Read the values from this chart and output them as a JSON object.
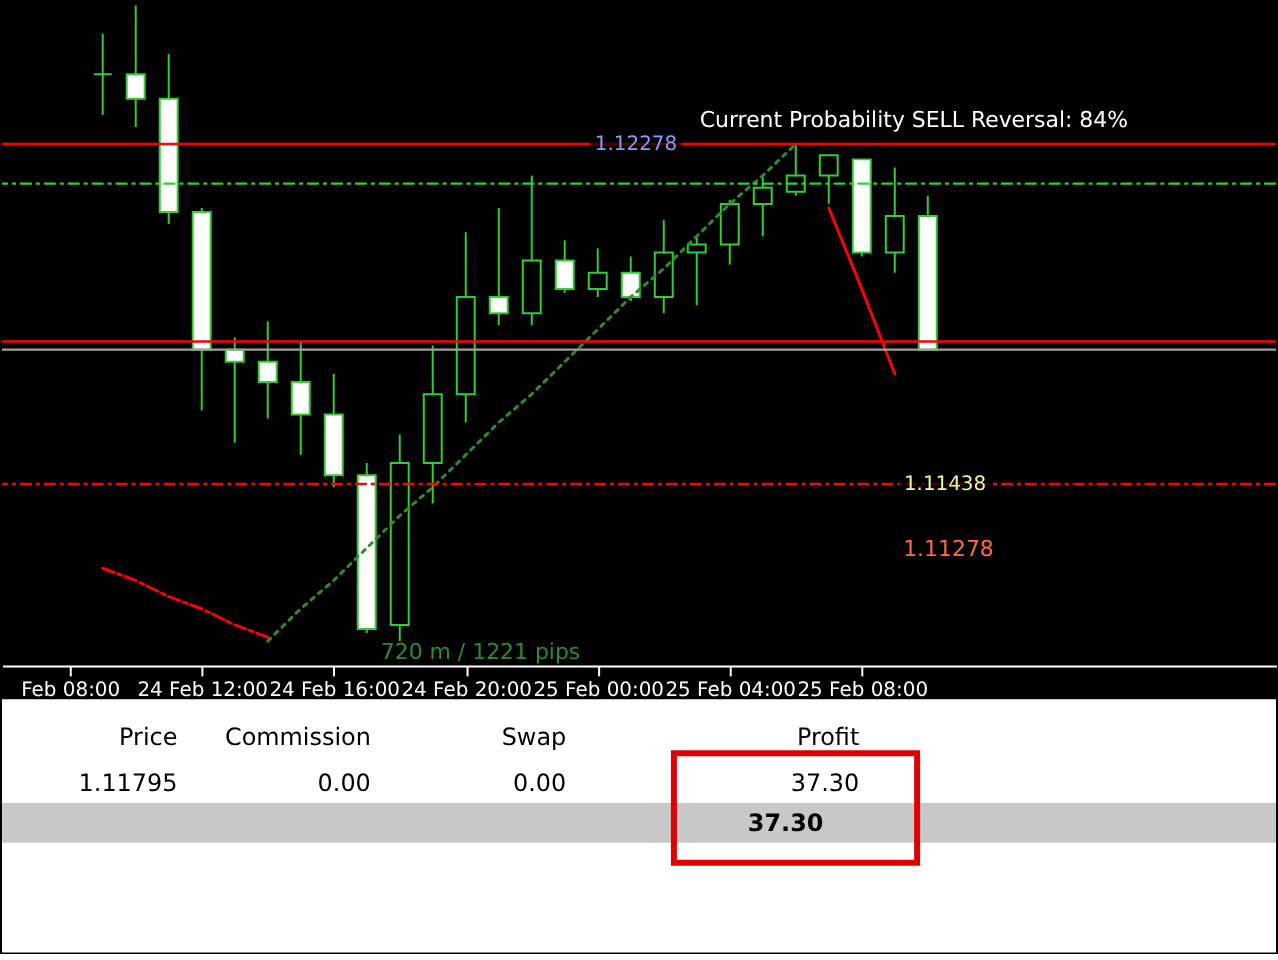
{
  "chart_data": {
    "type": "candlestick",
    "color": "#32cd32",
    "categories": [
      null,
      "Feb 08:00",
      null,
      null,
      null,
      "24 Feb 12:00",
      null,
      null,
      null,
      "24 Feb 16:00",
      null,
      null,
      null,
      "24 Feb 20:00",
      null,
      null,
      null,
      "25 Feb 00:00",
      null,
      null,
      null,
      "25 Feb 04:00",
      null,
      null,
      null,
      "25 Feb 08:00",
      null,
      null
    ],
    "ohlc": [
      null,
      null,
      [
        1.1245,
        1.1255,
        1.1235,
        1.1245
      ],
      [
        1.1245,
        1.1262,
        1.1232,
        1.1239
      ],
      [
        1.1239,
        1.125,
        1.1208,
        1.1211
      ],
      [
        1.1211,
        1.1212,
        1.1162,
        1.1177
      ],
      [
        1.1177,
        1.118,
        1.1154,
        1.1174
      ],
      [
        1.1174,
        1.1184,
        1.116,
        1.1169
      ],
      [
        1.1169,
        1.1179,
        1.1151,
        1.1161
      ],
      [
        1.1161,
        1.1171,
        1.1143,
        1.1146
      ],
      [
        1.1146,
        1.1149,
        1.1107,
        1.1108
      ],
      [
        1.1109,
        1.1156,
        1.1105,
        1.1149
      ],
      [
        1.1149,
        1.1178,
        1.1139,
        1.1166
      ],
      [
        1.1166,
        1.1206,
        1.1159,
        1.119
      ],
      [
        1.119,
        1.1212,
        1.1183,
        1.1186
      ],
      [
        1.1186,
        1.122,
        1.1183,
        1.1199
      ],
      [
        1.1199,
        1.1204,
        1.1191,
        1.1192
      ],
      [
        1.1192,
        1.1202,
        1.119,
        1.1196
      ],
      [
        1.1196,
        1.12,
        1.1189,
        1.119
      ],
      [
        1.119,
        1.1209,
        1.1186,
        1.1201
      ],
      [
        1.1201,
        1.1205,
        1.1188,
        1.1203
      ],
      [
        1.1203,
        1.1214,
        1.1198,
        1.1213
      ],
      [
        1.1213,
        1.122,
        1.1205,
        1.1217
      ],
      [
        1.1216,
        1.12278,
        1.1215,
        1.122
      ],
      [
        1.122,
        1.1225,
        1.1213,
        1.1225
      ],
      [
        1.1224,
        1.1224,
        1.12,
        1.1201
      ],
      [
        1.1201,
        1.1222,
        1.1196,
        1.121
      ],
      [
        1.121,
        1.1215,
        1.1177,
        1.1177
      ]
    ],
    "series": [
      {
        "type": "line",
        "color": "#ff0000",
        "line_style": "dashed",
        "values": [
          null,
          null,
          1.1123,
          1.112,
          1.1116,
          1.1113,
          1.1109,
          1.1106,
          null,
          null,
          null,
          null,
          null,
          null,
          null,
          null,
          null,
          null,
          null,
          null,
          null,
          null,
          null,
          null,
          null,
          null,
          null,
          null
        ]
      },
      {
        "type": "line",
        "color": "#2e8b2e",
        "line_style": "dotted",
        "values": [
          null,
          null,
          null,
          null,
          null,
          null,
          null,
          1.1105,
          1.1113,
          1.112,
          1.1128,
          1.1136,
          1.1143,
          1.1151,
          1.1159,
          1.1166,
          1.1174,
          1.1182,
          1.119,
          1.1197,
          1.1205,
          1.1213,
          1.122,
          1.12278,
          null,
          null,
          null,
          null
        ]
      },
      {
        "type": "line",
        "color": "#ff0000",
        "line_style": "solid",
        "values": [
          null,
          null,
          null,
          null,
          null,
          null,
          null,
          null,
          null,
          null,
          null,
          null,
          null,
          null,
          null,
          null,
          null,
          null,
          null,
          null,
          null,
          null,
          null,
          null,
          1.1212,
          1.1192,
          1.1171,
          null
        ]
      }
    ],
    "ylim": [
      1.1099,
      1.1263
    ],
    "tick_labels": "x",
    "grid": false,
    "ref_lines": [
      {
        "axis": "y",
        "value": 1.12278,
        "label": "1.12278",
        "color": "#ff0000",
        "line_style": "solid"
      },
      {
        "axis": "y",
        "value": 1.1218,
        "color": "#32cd32",
        "line_style": "dashed"
      },
      {
        "axis": "y",
        "value": 1.1179,
        "color": "#ff0000",
        "line_style": "solid"
      },
      {
        "axis": "y",
        "value": 1.1177,
        "color": "#a0a0a0",
        "line_style": "solid"
      },
      {
        "axis": "y",
        "value": 1.11438,
        "label": "1.11438",
        "color": "#ff0000",
        "line_style": "dashed"
      }
    ],
    "annotations": [
      "Current Probability SELL Reversal: 84%",
      "1.11278",
      "720 m / 1221 pips",
      "Price",
      "Commission",
      "Swap",
      "Profit",
      "1.11795",
      "0.00",
      "0.00",
      "37.30",
      "37.30"
    ]
  }
}
